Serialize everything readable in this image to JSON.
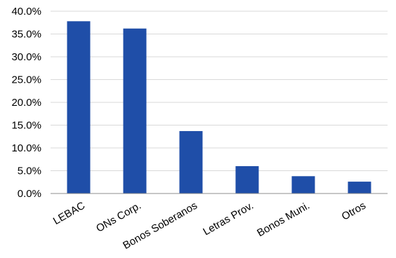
{
  "chart_data": {
    "type": "bar",
    "title": "",
    "xlabel": "",
    "ylabel": "",
    "categories": [
      "LEBAC",
      "ONs Corp.",
      "Bonos Soberanos",
      "Letras Prov.",
      "Bonos Muni.",
      "Otros"
    ],
    "values": [
      37.8,
      36.2,
      13.7,
      6.0,
      3.8,
      2.6
    ],
    "ylim": [
      0,
      40
    ],
    "yticks": [
      0,
      5,
      10,
      15,
      20,
      25,
      30,
      35,
      40
    ],
    "ytick_labels": [
      "0.0%",
      "5.0%",
      "10.0%",
      "15.0%",
      "20.0%",
      "25.0%",
      "30.0%",
      "35.0%",
      "40.0%"
    ],
    "grid": true,
    "bar_color": "#1f4ea8",
    "grid_color": "#d9d9d9",
    "axis_color": "#8c8c8c"
  }
}
